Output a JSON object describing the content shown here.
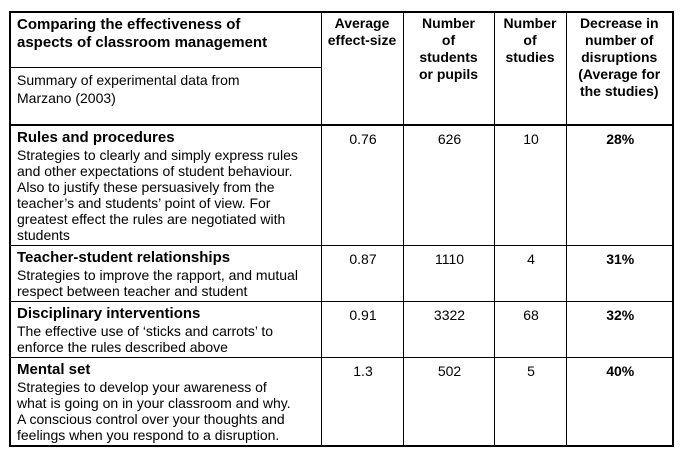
{
  "table": {
    "title": "Comparing the effectiveness of\naspects of classroom management",
    "subtitle": "Summary of experimental data from\nMarzano (2003)",
    "columns": [
      "Average\neffect-size",
      "Number\nof\nstudents\nor pupils",
      "Number\nof\nstudies",
      "Decrease in\nnumber of\ndisruptions\n(Average for\nthe studies)"
    ],
    "rows": [
      {
        "title": "Rules and procedures",
        "description": "Strategies to clearly and simply express rules\nand other expectations of student behaviour.\nAlso to justify these persuasively from the\nteacher’s and students’ point of view.  For\ngreatest effect the rules are negotiated with\nstudents",
        "effect_size": "0.76",
        "students": "626",
        "studies": "10",
        "decrease": "28%"
      },
      {
        "title": "Teacher-student relationships",
        "description": "Strategies to improve the rapport, and mutual\nrespect between teacher and student",
        "effect_size": "0.87",
        "students": "1110",
        "studies": "4",
        "decrease": "31%"
      },
      {
        "title": "Disciplinary interventions",
        "description": "The effective use of ‘sticks and carrots’ to\nenforce the rules described above",
        "effect_size": "0.91",
        "students": "3322",
        "studies": "68",
        "decrease": "32%"
      },
      {
        "title": "Mental set",
        "description": "Strategies to develop your awareness of\nwhat is going on in your classroom and why.\nA conscious control over your thoughts and\nfeelings when you respond to a disruption.",
        "effect_size": "1.3",
        "students": "502",
        "studies": "5",
        "decrease": "40%"
      }
    ]
  },
  "colors": {
    "border": "#000000",
    "text": "#000000",
    "background": "#ffffff"
  }
}
